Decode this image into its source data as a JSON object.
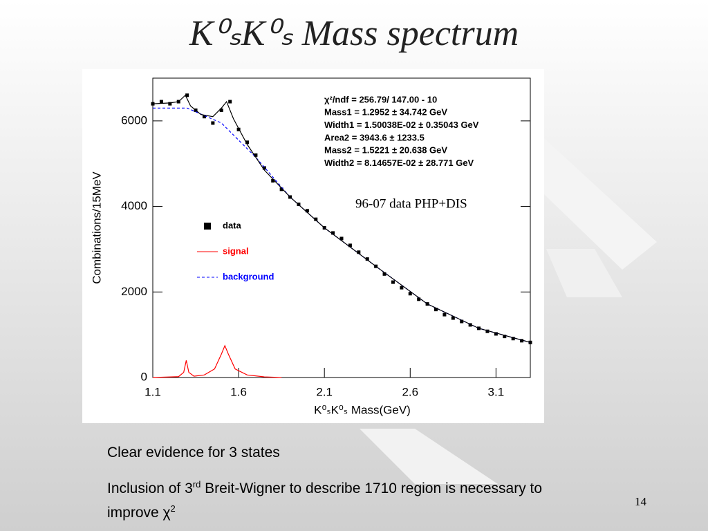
{
  "title": "K⁰ₛK⁰ₛ Mass spectrum",
  "bullets": [
    "Clear evidence for 3 states",
    {
      "parts": [
        "Inclusion of 3",
        "rd",
        " Breit-Wigner to describe 1710 region is necessary to improve χ",
        "2"
      ]
    }
  ],
  "page_number": "14",
  "chart_data": {
    "type": "scatter",
    "x_label": "K⁰ₛK⁰ₛ Mass(GeV)",
    "y_label": "Combinations/15MeV",
    "xlim": [
      1.1,
      3.3
    ],
    "ylim": [
      0,
      7000
    ],
    "xticks": [
      1.1,
      1.6,
      2.1,
      2.6,
      3.1
    ],
    "yticks": [
      0,
      2000,
      4000,
      6000
    ],
    "annotations": [
      "χ²/ndf =   256.79/  147.00 - 10",
      "Mass1 =  1.2952 ±   34.742 GeV",
      "Width1 = 1.50038E-02 ±  0.35043 GeV",
      "Area2 =  3943.6 ±   1233.5",
      "Mass2 =  1.5221 ±   20.638 GeV",
      "Width2 = 8.14657E-02 ±   28.771 GeV",
      "96-07 data PHP+DIS"
    ],
    "series": [
      {
        "name": "data",
        "style": "points",
        "color": "#000000",
        "x": [
          1.1,
          1.15,
          1.2,
          1.25,
          1.3,
          1.35,
          1.4,
          1.45,
          1.5,
          1.55,
          1.6,
          1.65,
          1.7,
          1.75,
          1.8,
          1.85,
          1.9,
          1.95,
          2.0,
          2.05,
          2.1,
          2.15,
          2.2,
          2.25,
          2.3,
          2.35,
          2.4,
          2.45,
          2.5,
          2.55,
          2.6,
          2.65,
          2.7,
          2.75,
          2.8,
          2.85,
          2.9,
          2.95,
          3.0,
          3.05,
          3.1,
          3.15,
          3.2,
          3.25,
          3.3
        ],
        "values": [
          6400,
          6450,
          6400,
          6450,
          6600,
          6250,
          6100,
          5950,
          6250,
          6450,
          5800,
          5500,
          5200,
          4900,
          4600,
          4400,
          4220,
          4050,
          3900,
          3700,
          3500,
          3380,
          3250,
          3090,
          2930,
          2770,
          2600,
          2420,
          2230,
          2100,
          1960,
          1830,
          1720,
          1590,
          1470,
          1390,
          1310,
          1230,
          1150,
          1080,
          1020,
          960,
          910,
          860,
          820
        ]
      },
      {
        "name": "signal",
        "style": "solid",
        "color": "#ff0000",
        "x": [
          1.1,
          1.25,
          1.28,
          1.295,
          1.31,
          1.34,
          1.4,
          1.46,
          1.5,
          1.52,
          1.54,
          1.58,
          1.65,
          1.75,
          1.85
        ],
        "values": [
          0,
          20,
          120,
          400,
          120,
          30,
          60,
          200,
          550,
          745,
          550,
          200,
          60,
          15,
          0
        ]
      },
      {
        "name": "background",
        "style": "dashed",
        "color": "#0000ff",
        "x": [
          1.1,
          1.3,
          1.5,
          1.7,
          1.9,
          2.1,
          2.4,
          2.7,
          3.0,
          3.3
        ],
        "values": [
          6300,
          6300,
          5950,
          5150,
          4220,
          3500,
          2600,
          1720,
          1150,
          820
        ]
      },
      {
        "style": "solid",
        "color": "#000000",
        "x": [
          1.1,
          1.2,
          1.25,
          1.29,
          1.32,
          1.38,
          1.45,
          1.5,
          1.53,
          1.57,
          1.65,
          1.75,
          1.9,
          2.1,
          2.4,
          2.7,
          3.0,
          3.3
        ],
        "values": [
          6400,
          6420,
          6450,
          6600,
          6350,
          6150,
          6100,
          6300,
          6450,
          6050,
          5450,
          4850,
          4220,
          3500,
          2600,
          1720,
          1150,
          820
        ]
      }
    ]
  }
}
